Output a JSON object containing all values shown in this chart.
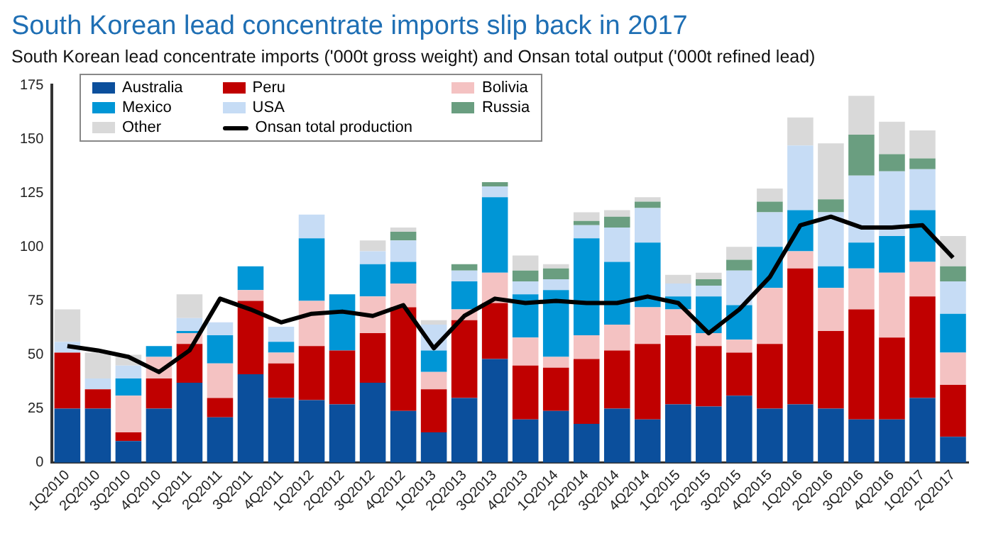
{
  "chart_data": {
    "type": "bar",
    "title": "South Korean lead concentrate imports slip back in 2017",
    "subtitle": "South Korean lead concentrate imports ('000t gross weight) and Onsan total output ('000t refined lead)",
    "categories": [
      "1Q2010",
      "2Q2010",
      "3Q2010",
      "4Q2010",
      "1Q2011",
      "2Q2011",
      "3Q2011",
      "4Q2011",
      "1Q2012",
      "2Q2012",
      "3Q2012",
      "4Q2012",
      "1Q2013",
      "2Q2013",
      "3Q2013",
      "4Q2013",
      "1Q2014",
      "2Q2014",
      "3Q2014",
      "4Q2014",
      "1Q2015",
      "2Q2015",
      "3Q2015",
      "4Q2015",
      "1Q2016",
      "2Q2016",
      "3Q2016",
      "4Q2016",
      "1Q2017",
      "2Q2017"
    ],
    "stacked": true,
    "series": [
      {
        "name": "Australia",
        "color": "#0b4f9c",
        "values": [
          25,
          25,
          10,
          25,
          37,
          21,
          41,
          30,
          29,
          27,
          37,
          24,
          14,
          30,
          48,
          20,
          24,
          18,
          25,
          20,
          27,
          26,
          31,
          25,
          27,
          25,
          20,
          20,
          30,
          12
        ]
      },
      {
        "name": "Peru",
        "color": "#c00000",
        "values": [
          26,
          9,
          4,
          14,
          18,
          9,
          34,
          16,
          25,
          25,
          23,
          48,
          20,
          36,
          26,
          25,
          20,
          30,
          27,
          35,
          32,
          28,
          20,
          30,
          63,
          36,
          51,
          38,
          47,
          24
        ]
      },
      {
        "name": "Bolivia",
        "color": "#f4c2c2",
        "values": [
          0,
          0,
          17,
          10,
          5,
          16,
          5,
          5,
          21,
          0,
          17,
          11,
          8,
          5,
          14,
          13,
          5,
          11,
          12,
          17,
          12,
          6,
          6,
          26,
          8,
          20,
          19,
          30,
          16,
          15
        ]
      },
      {
        "name": "Mexico",
        "color": "#0096d6",
        "values": [
          0,
          0,
          8,
          5,
          1,
          13,
          11,
          5,
          29,
          26,
          15,
          10,
          10,
          13,
          35,
          20,
          31,
          45,
          29,
          30,
          6,
          17,
          16,
          19,
          19,
          10,
          12,
          17,
          24,
          18
        ]
      },
      {
        "name": "USA",
        "color": "#c6dcf5",
        "values": [
          5,
          5,
          6,
          0,
          6,
          6,
          0,
          7,
          11,
          0,
          6,
          10,
          12,
          5,
          5,
          6,
          5,
          6,
          16,
          16,
          6,
          5,
          16,
          16,
          30,
          25,
          31,
          30,
          19,
          15
        ]
      },
      {
        "name": "Russia",
        "color": "#6a9e80",
        "values": [
          0,
          0,
          0,
          0,
          0,
          0,
          0,
          0,
          0,
          0,
          0,
          4,
          0,
          3,
          2,
          5,
          5,
          2,
          5,
          3,
          0,
          3,
          5,
          5,
          0,
          6,
          19,
          8,
          5,
          7
        ]
      },
      {
        "name": "Other",
        "color": "#d9d9d9",
        "values": [
          15,
          12,
          5,
          0,
          11,
          0,
          0,
          0,
          0,
          0,
          5,
          2,
          2,
          0,
          0,
          7,
          2,
          4,
          3,
          2,
          4,
          3,
          6,
          6,
          13,
          26,
          18,
          15,
          13,
          14
        ]
      },
      {
        "name": "Onsan total production",
        "type": "line",
        "color": "#000000",
        "values": [
          54,
          52,
          49,
          42,
          52,
          76,
          71,
          65,
          69,
          70,
          68,
          73,
          53,
          68,
          76,
          74,
          75,
          74,
          74,
          77,
          74,
          60,
          71,
          86,
          110,
          114,
          109,
          109,
          110,
          95
        ]
      }
    ],
    "ylim": [
      0,
      175
    ],
    "yticks": [
      0,
      25,
      50,
      75,
      100,
      125,
      150,
      175
    ],
    "grid": false,
    "legend": "top left",
    "marker": "none"
  }
}
